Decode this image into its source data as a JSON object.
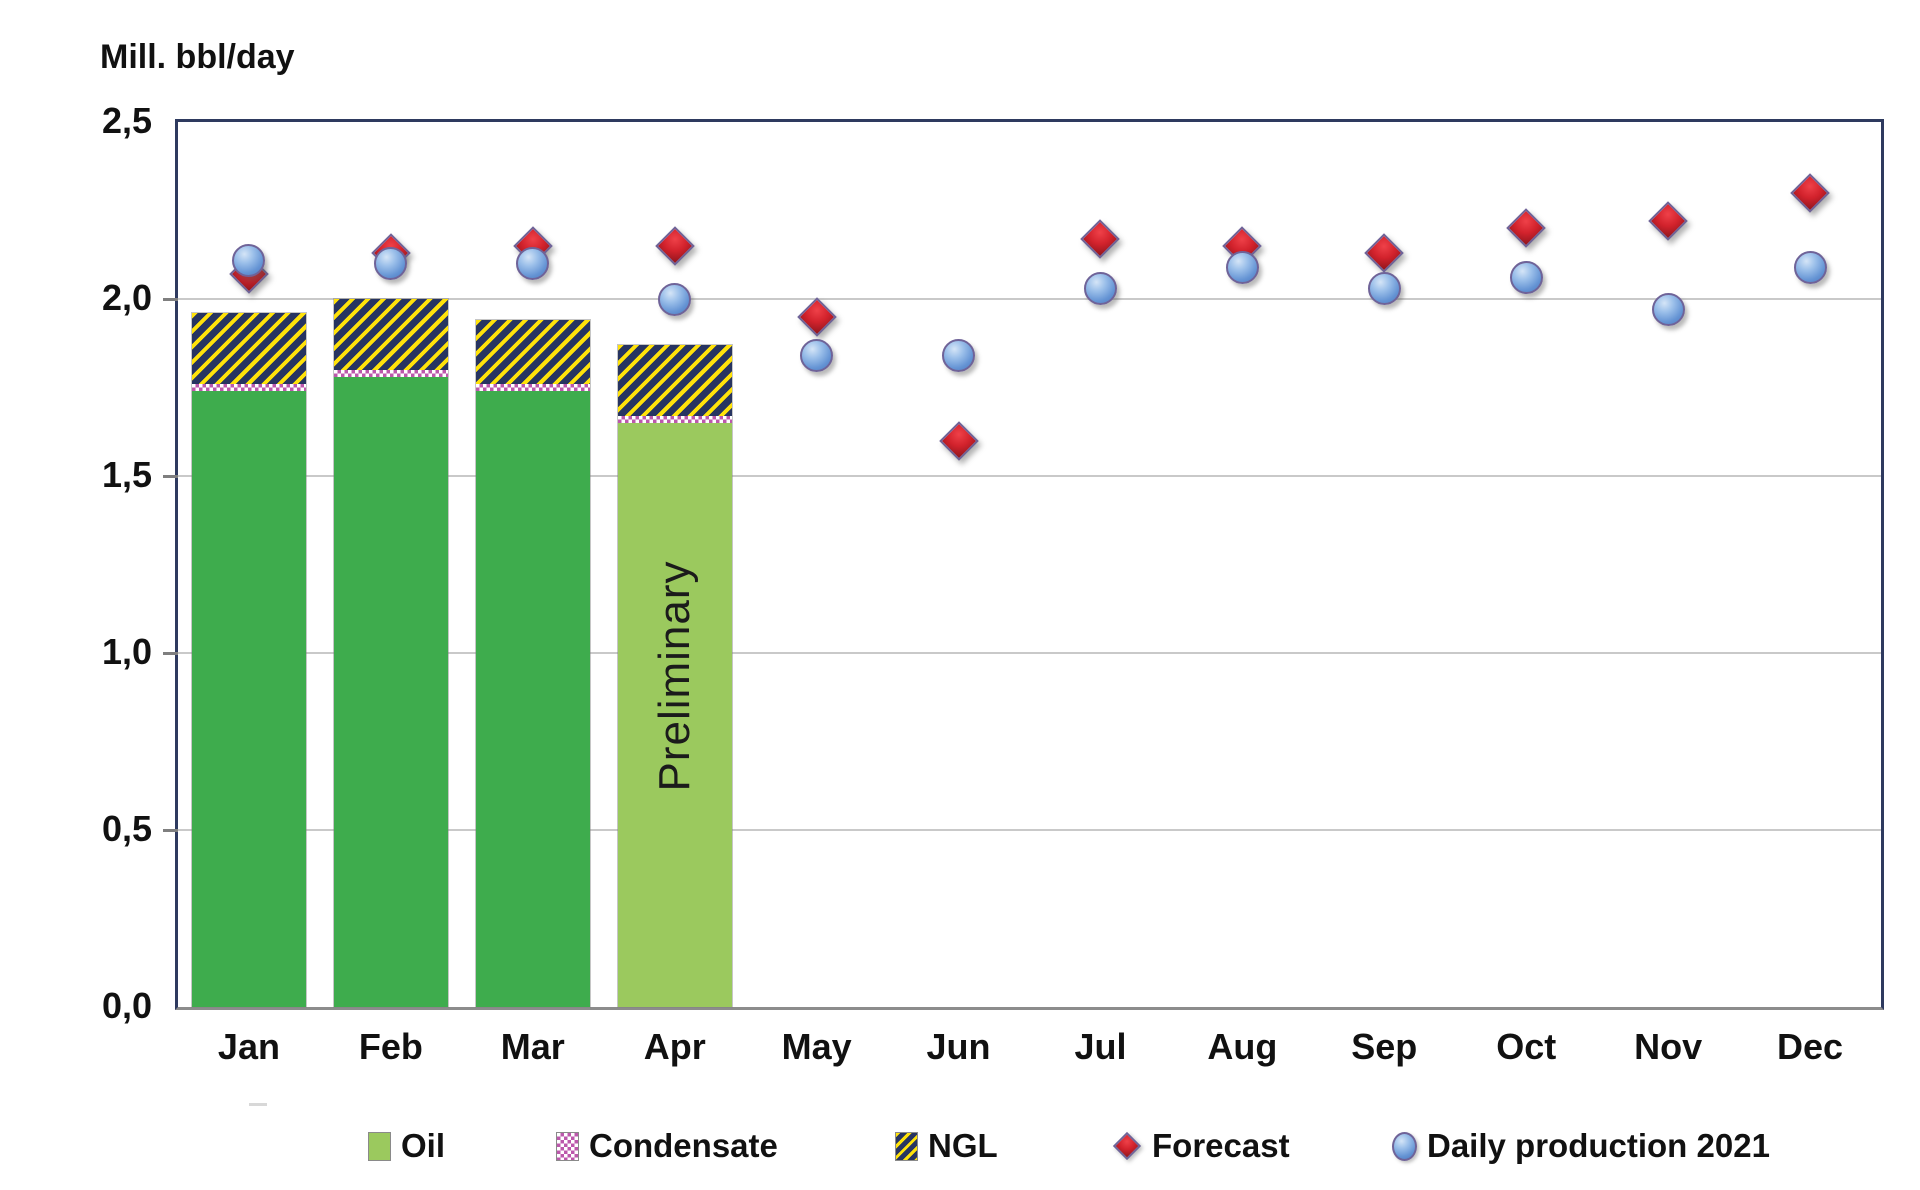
{
  "title": "Mill. bbl/day",
  "preliminary_label": "Preliminary",
  "legend": {
    "oil": "Oil",
    "condensate": "Condensate",
    "ngl": "NGL",
    "forecast": "Forecast",
    "daily_production": "Daily production 2021"
  },
  "colors": {
    "oil_final": "#3eac4d",
    "oil_preliminary": "#9bc95e",
    "ngl_navy": "#273461",
    "ngl_yellow": "#ffe20a",
    "condensate_pink": "#bc58ac",
    "condensate_white": "#ffffff",
    "forecast_red": "#d2222c",
    "daily_blue": "#6594d4",
    "marker_border": "#6f6398",
    "axis_border": "#2e3a5f",
    "axis_bottom": "#8c8c8c",
    "gridline": "#c9c9c9",
    "text": "#111111"
  },
  "chart_data": {
    "type": [
      "bar",
      "scatter"
    ],
    "title": "Mill. bbl/day",
    "xlabel": "",
    "ylabel": "Mill. bbl/day",
    "ylim": [
      0,
      2.5
    ],
    "y_tick_labels": [
      "0,0",
      "0,5",
      "1,0",
      "1,5",
      "2,0",
      "2,5"
    ],
    "y_tick_values": [
      0,
      0.5,
      1.0,
      1.5,
      2.0,
      2.5
    ],
    "grid": "horizontal",
    "categories": [
      "Jan",
      "Feb",
      "Mar",
      "Apr",
      "May",
      "Jun",
      "Jul",
      "Aug",
      "Sep",
      "Oct",
      "Nov",
      "Dec"
    ],
    "bar_months_count": 4,
    "preliminary_month": "Apr",
    "series": [
      {
        "name": "Oil",
        "type": "bar-stacked",
        "values": [
          1.74,
          1.78,
          1.74,
          1.65
        ]
      },
      {
        "name": "Condensate",
        "type": "bar-stacked",
        "values": [
          0.02,
          0.02,
          0.02,
          0.02
        ]
      },
      {
        "name": "NGL",
        "type": "bar-stacked",
        "values": [
          0.2,
          0.2,
          0.18,
          0.2
        ]
      },
      {
        "name": "Forecast",
        "type": "scatter-diamond",
        "values": [
          2.07,
          2.13,
          2.15,
          2.15,
          1.95,
          1.6,
          2.17,
          2.15,
          2.13,
          2.2,
          2.22,
          2.3
        ]
      },
      {
        "name": "Daily production 2021",
        "type": "scatter-circle",
        "values": [
          2.11,
          2.1,
          2.1,
          2.0,
          1.84,
          1.84,
          2.03,
          2.09,
          2.03,
          2.06,
          1.97,
          2.09
        ]
      }
    ],
    "bar_totals": [
      1.96,
      2.0,
      1.94,
      1.87
    ],
    "legend_position": "bottom"
  }
}
